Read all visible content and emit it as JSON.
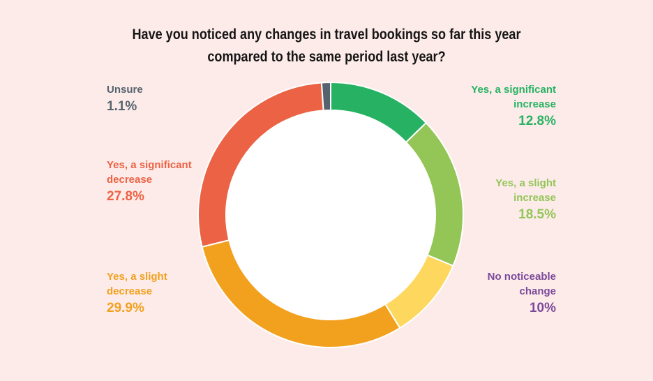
{
  "chart_data": {
    "type": "pie",
    "title_lines": [
      "Have you noticed any changes in travel bookings so far this year",
      "compared to the same period last year?"
    ],
    "slices": [
      {
        "name": "Yes, a significant increase",
        "name_lines": "Yes, a significant\nincrease",
        "value": 12.8,
        "label": "12.8%",
        "color": "#27b263"
      },
      {
        "name": "Yes, a slight increase",
        "name_lines": "Yes, a slight\nincrease",
        "value": 18.5,
        "label": "18.5%",
        "color": "#93c557"
      },
      {
        "name": "No noticeable change",
        "name_lines": "No noticeable\nchange",
        "value": 10,
        "label": "10%",
        "color": "#fed75f",
        "text_color": "#7a4a9a"
      },
      {
        "name": "Yes, a slight decrease",
        "name_lines": "Yes, a slight\ndecrease",
        "value": 29.9,
        "label": "29.9%",
        "color": "#f2a11f"
      },
      {
        "name": "Yes, a significant decrease",
        "name_lines": "Yes, a significant\ndecrease",
        "value": 27.8,
        "label": "27.8%",
        "color": "#ec6244"
      },
      {
        "name": "Unsure",
        "name_lines": "Unsure",
        "value": 1.1,
        "label": "1.1%",
        "color": "#56636e"
      }
    ],
    "hole": true
  }
}
